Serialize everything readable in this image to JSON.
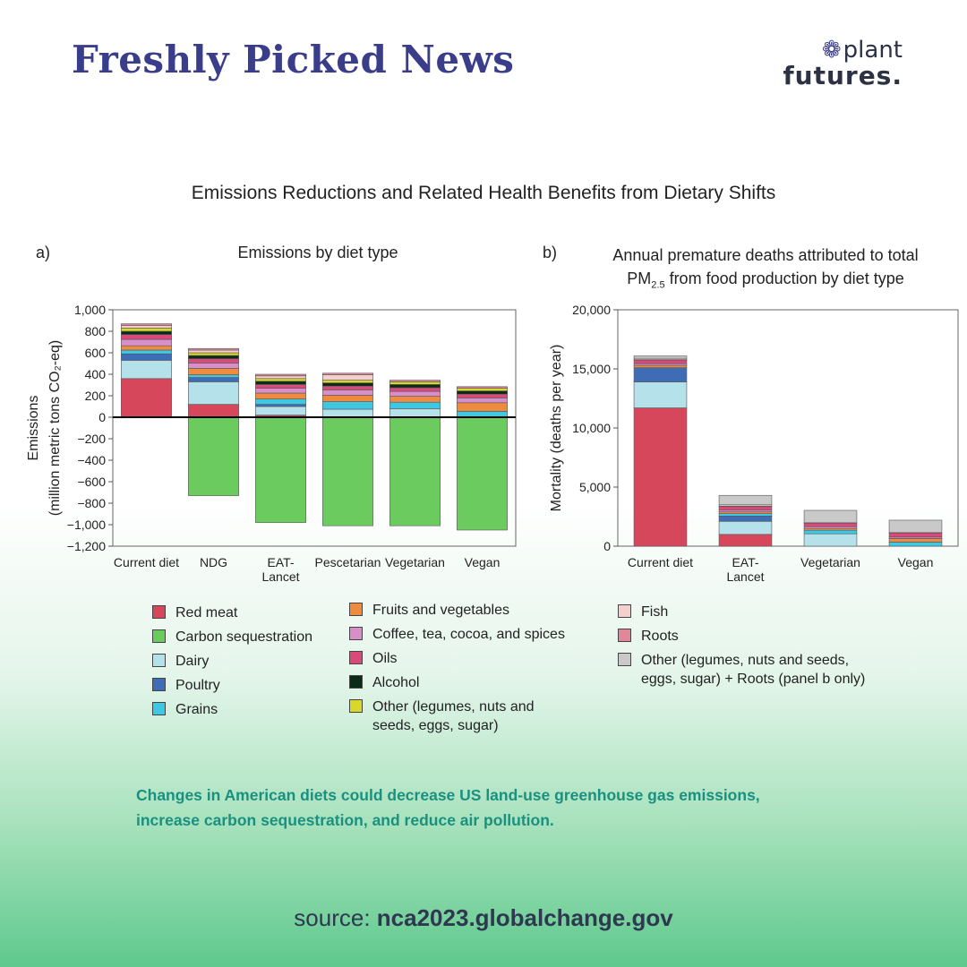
{
  "header": {
    "title": "Freshly Picked News",
    "logo_top": "plant",
    "logo_bottom": "futures."
  },
  "figure_title": "Emissions Reductions and Related Health Benefits from Dietary Shifts",
  "chart_data": [
    {
      "type": "bar",
      "panel": "a)",
      "title": "Emissions by diet type",
      "ylabel_line1": "Emissions",
      "ylabel_line2": "(million metric tons CO₂-eq)",
      "ylim": [
        -1200,
        1000
      ],
      "yticks": [
        1000,
        800,
        600,
        400,
        200,
        0,
        -200,
        -400,
        -600,
        -800,
        -1000,
        -1200
      ],
      "ytick_labels": [
        "1,000",
        "800",
        "600",
        "400",
        "200",
        "0",
        "−200",
        "−400",
        "−600",
        "−800",
        "−1,000",
        "−1,200"
      ],
      "categories": [
        "Current diet",
        "NDG",
        "EAT-\nLancet",
        "Pescetarian",
        "Vegetarian",
        "Vegan"
      ],
      "stacked": true,
      "series": [
        {
          "name": "Red meat",
          "color": "#d7475c",
          "values": [
            360,
            120,
            20,
            0,
            0,
            0
          ]
        },
        {
          "name": "Carbon sequestration",
          "color": "#6ccb5f",
          "values": [
            0,
            -730,
            -980,
            -1010,
            -1010,
            -1050
          ]
        },
        {
          "name": "Dairy",
          "color": "#b5e1ea",
          "values": [
            170,
            210,
            80,
            75,
            80,
            0
          ]
        },
        {
          "name": "Poultry",
          "color": "#3f6db5",
          "values": [
            60,
            40,
            20,
            0,
            0,
            0
          ]
        },
        {
          "name": "Grains",
          "color": "#3ec8e4",
          "values": [
            35,
            25,
            50,
            70,
            60,
            55
          ]
        },
        {
          "name": "Fruits and vegetables",
          "color": "#ef8b3f",
          "values": [
            40,
            60,
            55,
            60,
            55,
            80
          ]
        },
        {
          "name": "Coffee, tea, cocoa, and spices",
          "color": "#d68fc8",
          "values": [
            60,
            50,
            45,
            50,
            45,
            45
          ]
        },
        {
          "name": "Oils",
          "color": "#d94a7a",
          "values": [
            45,
            40,
            35,
            35,
            35,
            35
          ]
        },
        {
          "name": "Alcohol",
          "color": "#0b2a18",
          "values": [
            30,
            30,
            30,
            30,
            30,
            30
          ]
        },
        {
          "name": "Other (legumes, nuts and seeds, eggs, sugar)",
          "color": "#d8d82a",
          "values": [
            30,
            25,
            25,
            25,
            25,
            25
          ]
        },
        {
          "name": "Fish",
          "color": "#f3cfcd",
          "values": [
            25,
            25,
            25,
            50,
            0,
            0
          ]
        },
        {
          "name": "Roots",
          "color": "#e2879a",
          "values": [
            15,
            15,
            15,
            15,
            15,
            15
          ]
        }
      ]
    },
    {
      "type": "bar",
      "panel": "b)",
      "title_line1": "Annual premature deaths attributed to total",
      "title_line2_prefix": "PM",
      "title_line2_sub": "2.5",
      "title_line2_suffix": " from food production by diet type",
      "ylabel": "Mortality (deaths per year)",
      "ylim": [
        0,
        20000
      ],
      "yticks": [
        0,
        5000,
        10000,
        15000,
        20000
      ],
      "ytick_labels": [
        "0",
        "5,000",
        "10,000",
        "15,000",
        "20,000"
      ],
      "categories": [
        "Current diet",
        "EAT-\nLancet",
        "Vegetarian",
        "Vegan"
      ],
      "stacked": true,
      "series": [
        {
          "name": "Red meat",
          "color": "#d7475c",
          "values": [
            11700,
            1000,
            0,
            0
          ]
        },
        {
          "name": "Dairy",
          "color": "#b5e1ea",
          "values": [
            2200,
            1100,
            1050,
            0
          ]
        },
        {
          "name": "Poultry",
          "color": "#3f6db5",
          "values": [
            1200,
            450,
            0,
            0
          ]
        },
        {
          "name": "Grains",
          "color": "#3ec8e4",
          "values": [
            0,
            200,
            300,
            350
          ]
        },
        {
          "name": "Fruits and vegetables",
          "color": "#ef8b3f",
          "values": [
            200,
            150,
            150,
            300
          ]
        },
        {
          "name": "Coffee, tea, cocoa, and spices",
          "color": "#d68fc8",
          "values": [
            150,
            150,
            150,
            120
          ]
        },
        {
          "name": "Oils",
          "color": "#d94a7a",
          "values": [
            300,
            300,
            300,
            350
          ]
        },
        {
          "name": "Alcohol",
          "color": "#0b2a18",
          "values": [
            30,
            30,
            30,
            30
          ]
        },
        {
          "name": "Fish",
          "color": "#f3cfcd",
          "values": [
            120,
            120,
            0,
            0
          ]
        },
        {
          "name": "Other (legumes, nuts and seeds, eggs, sugar) + Roots (panel b only)",
          "color": "#c9c9c9",
          "values": [
            200,
            800,
            1050,
            1050
          ]
        }
      ]
    }
  ],
  "legend": {
    "col1": [
      {
        "label": "Red meat",
        "color": "#d7475c"
      },
      {
        "label": "Carbon sequestration",
        "color": "#6ccb5f"
      },
      {
        "label": "Dairy",
        "color": "#b5e1ea"
      },
      {
        "label": "Poultry",
        "color": "#3f6db5"
      },
      {
        "label": "Grains",
        "color": "#3ec8e4"
      }
    ],
    "col2": [
      {
        "label": "Fruits and vegetables",
        "color": "#ef8b3f"
      },
      {
        "label": "Coffee, tea, cocoa, and spices",
        "color": "#d68fc8"
      },
      {
        "label": "Oils",
        "color": "#d94a7a"
      },
      {
        "label": "Alcohol",
        "color": "#0b2a18"
      },
      {
        "label": "Other (legumes, nuts and",
        "label2": "seeds, eggs, sugar)",
        "color": "#d8d82a"
      }
    ],
    "col3": [
      {
        "label": "Fish",
        "color": "#f3cfcd"
      },
      {
        "label": "Roots",
        "color": "#e2879a"
      },
      {
        "label": "Other (legumes, nuts and seeds,",
        "label2": "eggs, sugar) + Roots (panel b only)",
        "color": "#c9c9c9"
      }
    ]
  },
  "caption": "Changes in American diets could decrease US land-use greenhouse gas emissions, increase carbon sequestration, and reduce air pollution.",
  "source": {
    "prefix": "source: ",
    "url": "nca2023.globalchange.gov"
  }
}
